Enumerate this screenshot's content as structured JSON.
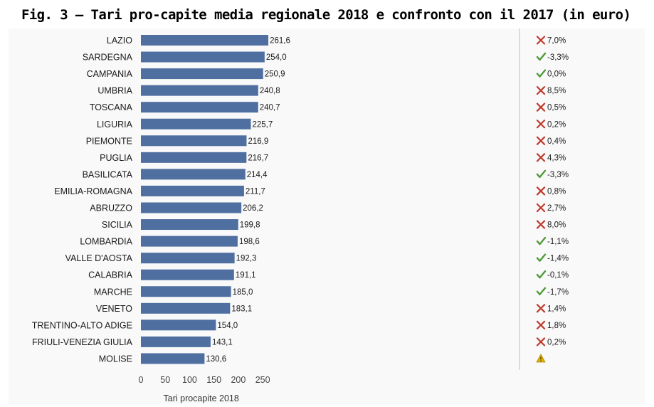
{
  "title": "Fig. 3 – Tari pro-capite media regionale 2018 e confronto con il 2017 (in euro)",
  "chart_data": {
    "type": "bar",
    "orientation": "horizontal",
    "categories": [
      "LAZIO",
      "SARDEGNA",
      "CAMPANIA",
      "UMBRIA",
      "TOSCANA",
      "LIGURIA",
      "PIEMONTE",
      "PUGLIA",
      "BASILICATA",
      "EMILIA-ROMAGNA",
      "ABRUZZO",
      "SICILIA",
      "LOMBARDIA",
      "VALLE D'AOSTA",
      "CALABRIA",
      "MARCHE",
      "VENETO",
      "TRENTINO-ALTO ADIGE",
      "FRIULI-VENEZIA GIULIA",
      "MOLISE"
    ],
    "values": [
      261.6,
      254.0,
      250.9,
      240.8,
      240.7,
      225.7,
      216.9,
      216.7,
      214.4,
      211.7,
      206.2,
      199.8,
      198.6,
      192.3,
      191.1,
      185.0,
      183.1,
      154.0,
      143.1,
      130.6
    ],
    "value_labels": [
      "261,6",
      "254,0",
      "250,9",
      "240,8",
      "240,7",
      "225,7",
      "216,9",
      "216,7",
      "214,4",
      "211,7",
      "206,2",
      "199,8",
      "198,6",
      "192,3",
      "191,1",
      "185,0",
      "183,1",
      "154,0",
      "143,1",
      "130,6"
    ],
    "change_labels": [
      "7,0%",
      "-3,3%",
      "0,0%",
      "8,5%",
      "0,5%",
      "0,2%",
      "0,4%",
      "4,3%",
      "-3,3%",
      "0,8%",
      "2,7%",
      "8,0%",
      "-1,1%",
      "-1,4%",
      "-0,1%",
      "-1,7%",
      "1,4%",
      "1,8%",
      "0,2%",
      ""
    ],
    "change_icons": [
      "cross",
      "check",
      "check",
      "cross",
      "cross",
      "cross",
      "cross",
      "cross",
      "check",
      "cross",
      "cross",
      "cross",
      "check",
      "check",
      "check",
      "check",
      "cross",
      "cross",
      "cross",
      "warning"
    ],
    "xlabel": "Tari procapite 2018",
    "ylabel": "",
    "xlim": [
      0,
      300
    ],
    "xticks": [
      0,
      50,
      100,
      150,
      200,
      250
    ],
    "grid": false,
    "colors": {
      "bar": "#4f6fa0",
      "cross": "#c0392b",
      "check": "#4f9a3a",
      "warning": "#e0b400",
      "divider": "#bfbfbf"
    }
  }
}
